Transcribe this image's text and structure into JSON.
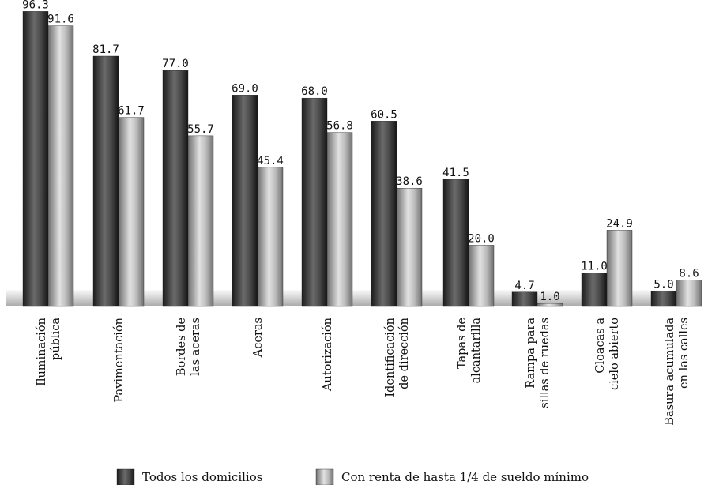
{
  "chart_data": {
    "type": "bar",
    "categories": [
      [
        "Iluminación",
        "pública"
      ],
      [
        "Pavimentación"
      ],
      [
        "Bordes de",
        "las aceras"
      ],
      [
        "Aceras"
      ],
      [
        "Autorización"
      ],
      [
        "Identificación",
        "de dirección"
      ],
      [
        "Tapas de",
        "alcantarilla"
      ],
      [
        "Rampa para",
        "sillas de ruedas"
      ],
      [
        "Cloacas a",
        "cielo abierto"
      ],
      [
        "Basura acumulada",
        "en las calles"
      ]
    ],
    "series": [
      {
        "name": "Todos los domicilios",
        "values": [
          96.3,
          81.7,
          77.0,
          69.0,
          68.0,
          60.5,
          41.5,
          4.7,
          11.0,
          5.0
        ],
        "labels": [
          "96.3",
          "81.7",
          "77.0",
          "69.0",
          "68.0",
          "60.5",
          "41.5",
          "4.7",
          "11.0",
          "5.0"
        ]
      },
      {
        "name": "Con renta de hasta 1/4 de sueldo mínimo",
        "values": [
          91.6,
          61.7,
          55.7,
          45.4,
          56.8,
          38.6,
          20.0,
          1.0,
          24.9,
          8.6
        ],
        "labels": [
          "91.6",
          "61.7",
          "55.7",
          "45.4",
          "56.8",
          "38.6",
          "20.0",
          "1.0",
          "24.9",
          "8.6"
        ]
      }
    ],
    "ylim": [
      0,
      100
    ],
    "grid": false,
    "legend_position": "bottom",
    "colors": {
      "series1": "#3a3a3a",
      "series2": "#9a9a9a"
    }
  }
}
